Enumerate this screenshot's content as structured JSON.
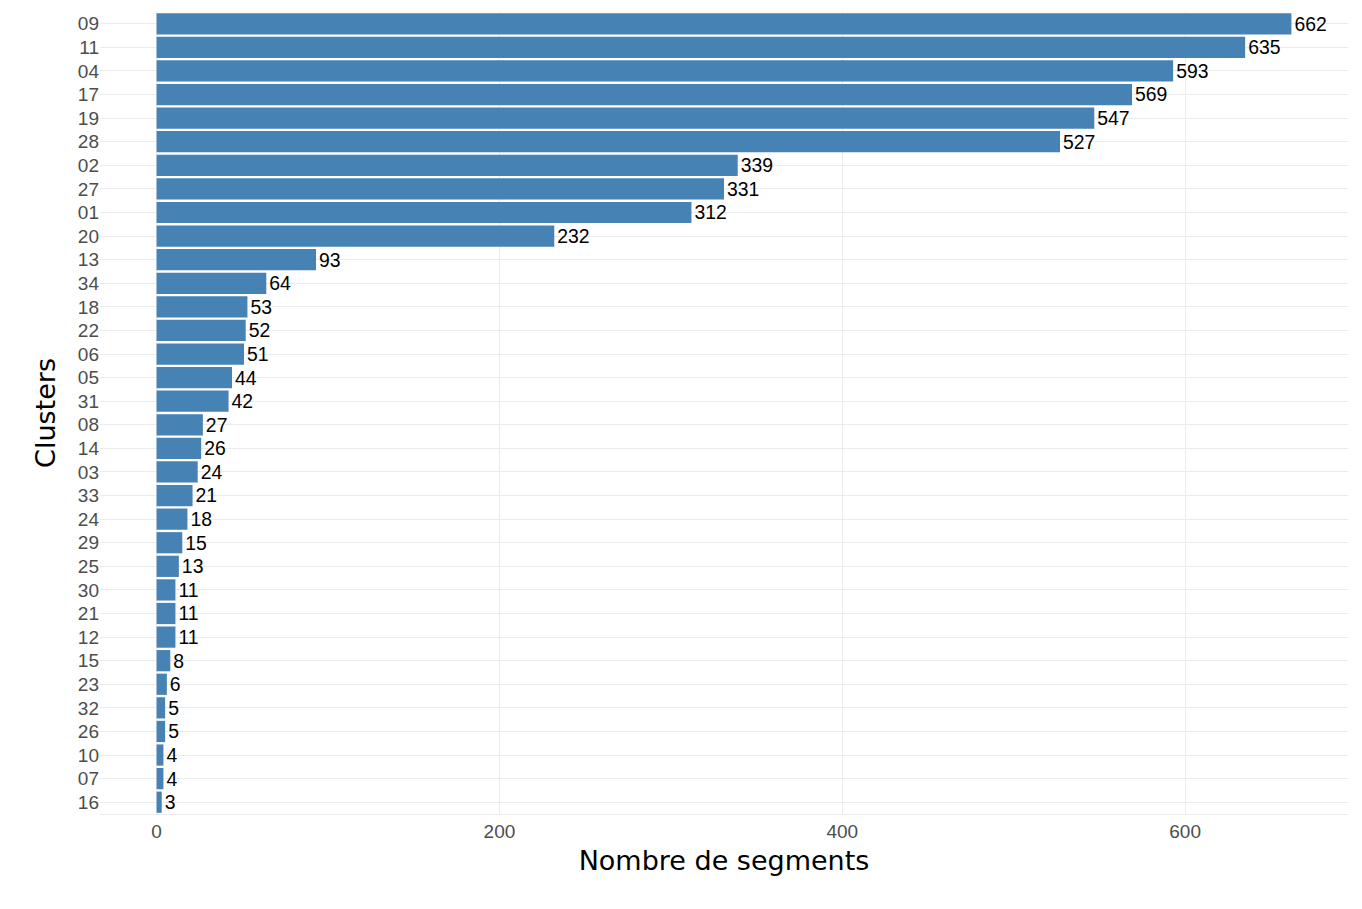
{
  "chart_data": {
    "type": "bar",
    "orientation": "horizontal",
    "x_label": "Nombre de segments",
    "y_label": "Clusters",
    "categories": [
      "09",
      "11",
      "04",
      "17",
      "19",
      "28",
      "02",
      "27",
      "01",
      "20",
      "13",
      "34",
      "18",
      "22",
      "06",
      "05",
      "31",
      "08",
      "14",
      "03",
      "33",
      "24",
      "29",
      "25",
      "30",
      "21",
      "12",
      "15",
      "23",
      "32",
      "26",
      "10",
      "07",
      "16"
    ],
    "values": [
      662,
      635,
      593,
      569,
      547,
      527,
      339,
      331,
      312,
      232,
      93,
      64,
      53,
      52,
      51,
      44,
      42,
      27,
      26,
      24,
      21,
      18,
      15,
      13,
      11,
      11,
      11,
      8,
      6,
      5,
      5,
      4,
      4,
      3
    ],
    "color": "#4682b4",
    "xlim": [
      -33,
      695
    ],
    "xticks": [
      0,
      200,
      400,
      600
    ],
    "grid": true,
    "data_labels": true
  }
}
